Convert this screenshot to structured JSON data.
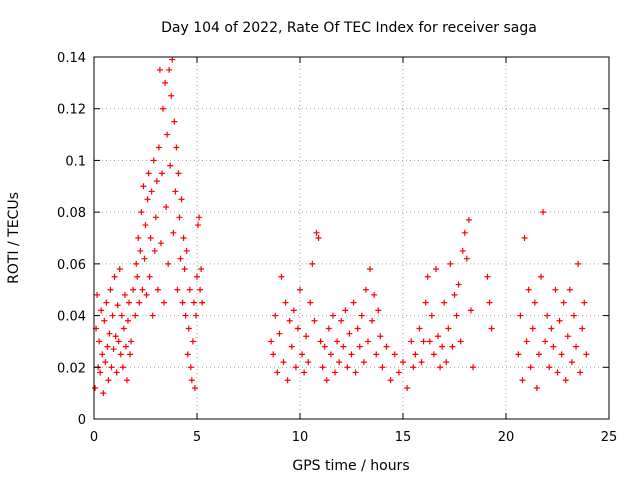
{
  "chart_data": {
    "type": "scatter",
    "title": "Day 104 of 2022, Rate Of TEC Index for receiver saga",
    "xlabel": "GPS time / hours",
    "ylabel": "ROTI / TECUs",
    "xlim": [
      0,
      25
    ],
    "ylim": [
      0,
      0.14
    ],
    "xticks": [
      0,
      5,
      10,
      15,
      20,
      25
    ],
    "yticks": [
      0,
      0.02,
      0.04,
      0.06,
      0.08,
      0.1,
      0.12,
      0.14
    ],
    "xtick_labels": [
      "0",
      "5",
      "10",
      "15",
      "20",
      "25"
    ],
    "ytick_labels": [
      "0",
      "0.02",
      "0.04",
      "0.06",
      "0.08",
      "0.1",
      "0.12",
      "0.14"
    ],
    "grid": true,
    "marker": "plus",
    "color": "#ff0000",
    "series": [
      {
        "points": [
          [
            0.05,
            0.012
          ],
          [
            0.1,
            0.035
          ],
          [
            0.15,
            0.048
          ],
          [
            0.2,
            0.02
          ],
          [
            0.25,
            0.03
          ],
          [
            0.3,
            0.018
          ],
          [
            0.35,
            0.042
          ],
          [
            0.4,
            0.025
          ],
          [
            0.45,
            0.01
          ],
          [
            0.5,
            0.038
          ],
          [
            0.55,
            0.022
          ],
          [
            0.6,
            0.045
          ],
          [
            0.65,
            0.028
          ],
          [
            0.7,
            0.015
          ],
          [
            0.75,
            0.033
          ],
          [
            0.8,
            0.05
          ],
          [
            0.85,
            0.02
          ],
          [
            0.9,
            0.04
          ],
          [
            0.95,
            0.027
          ],
          [
            1.0,
            0.055
          ],
          [
            1.05,
            0.032
          ],
          [
            1.1,
            0.018
          ],
          [
            1.15,
            0.044
          ],
          [
            1.2,
            0.03
          ],
          [
            1.25,
            0.058
          ],
          [
            1.3,
            0.025
          ],
          [
            1.35,
            0.04
          ],
          [
            1.4,
            0.02
          ],
          [
            1.45,
            0.035
          ],
          [
            1.5,
            0.048
          ],
          [
            1.55,
            0.028
          ],
          [
            1.6,
            0.015
          ],
          [
            1.65,
            0.038
          ],
          [
            1.7,
            0.045
          ],
          [
            1.75,
            0.025
          ],
          [
            1.8,
            0.03
          ],
          [
            1.9,
            0.05
          ],
          [
            2.0,
            0.04
          ],
          [
            2.05,
            0.06
          ],
          [
            2.1,
            0.055
          ],
          [
            2.15,
            0.07
          ],
          [
            2.2,
            0.045
          ],
          [
            2.25,
            0.065
          ],
          [
            2.3,
            0.08
          ],
          [
            2.35,
            0.05
          ],
          [
            2.4,
            0.09
          ],
          [
            2.45,
            0.062
          ],
          [
            2.5,
            0.075
          ],
          [
            2.55,
            0.048
          ],
          [
            2.6,
            0.085
          ],
          [
            2.65,
            0.095
          ],
          [
            2.7,
            0.055
          ],
          [
            2.75,
            0.07
          ],
          [
            2.8,
            0.088
          ],
          [
            2.85,
            0.04
          ],
          [
            2.9,
            0.1
          ],
          [
            2.95,
            0.065
          ],
          [
            3.0,
            0.078
          ],
          [
            3.05,
            0.092
          ],
          [
            3.1,
            0.05
          ],
          [
            3.15,
            0.105
          ],
          [
            3.2,
            0.135
          ],
          [
            3.25,
            0.068
          ],
          [
            3.3,
            0.095
          ],
          [
            3.35,
            0.12
          ],
          [
            3.4,
            0.045
          ],
          [
            3.45,
            0.13
          ],
          [
            3.5,
            0.082
          ],
          [
            3.55,
            0.11
          ],
          [
            3.6,
            0.06
          ],
          [
            3.65,
            0.135
          ],
          [
            3.7,
            0.098
          ],
          [
            3.75,
            0.125
          ],
          [
            3.8,
            0.139
          ],
          [
            3.85,
            0.072
          ],
          [
            3.9,
            0.115
          ],
          [
            3.95,
            0.088
          ],
          [
            4.0,
            0.105
          ],
          [
            4.05,
            0.05
          ],
          [
            4.1,
            0.095
          ],
          [
            4.15,
            0.078
          ],
          [
            4.2,
            0.062
          ],
          [
            4.25,
            0.085
          ],
          [
            4.3,
            0.045
          ],
          [
            4.35,
            0.07
          ],
          [
            4.4,
            0.058
          ],
          [
            4.45,
            0.04
          ],
          [
            4.5,
            0.065
          ],
          [
            4.55,
            0.025
          ],
          [
            4.6,
            0.035
          ],
          [
            4.65,
            0.05
          ],
          [
            4.7,
            0.02
          ],
          [
            4.75,
            0.015
          ],
          [
            4.8,
            0.03
          ],
          [
            4.85,
            0.045
          ],
          [
            4.9,
            0.012
          ],
          [
            4.95,
            0.04
          ],
          [
            5.0,
            0.055
          ],
          [
            5.05,
            0.075
          ],
          [
            5.1,
            0.078
          ],
          [
            5.15,
            0.05
          ],
          [
            5.2,
            0.058
          ],
          [
            5.25,
            0.045
          ],
          [
            8.6,
            0.03
          ],
          [
            8.7,
            0.025
          ],
          [
            8.8,
            0.04
          ],
          [
            8.9,
            0.018
          ],
          [
            9.0,
            0.033
          ],
          [
            9.1,
            0.055
          ],
          [
            9.2,
            0.022
          ],
          [
            9.3,
            0.045
          ],
          [
            9.4,
            0.015
          ],
          [
            9.5,
            0.038
          ],
          [
            9.6,
            0.028
          ],
          [
            9.7,
            0.042
          ],
          [
            9.8,
            0.02
          ],
          [
            9.9,
            0.035
          ],
          [
            10.0,
            0.05
          ],
          [
            10.1,
            0.025
          ],
          [
            10.2,
            0.018
          ],
          [
            10.3,
            0.032
          ],
          [
            10.4,
            0.022
          ],
          [
            10.5,
            0.045
          ],
          [
            10.6,
            0.06
          ],
          [
            10.7,
            0.038
          ],
          [
            10.8,
            0.072
          ],
          [
            10.9,
            0.07
          ],
          [
            11.0,
            0.03
          ],
          [
            11.1,
            0.02
          ],
          [
            11.2,
            0.028
          ],
          [
            11.3,
            0.015
          ],
          [
            11.4,
            0.035
          ],
          [
            11.5,
            0.025
          ],
          [
            11.6,
            0.04
          ],
          [
            11.7,
            0.018
          ],
          [
            11.8,
            0.03
          ],
          [
            11.9,
            0.022
          ],
          [
            12.0,
            0.038
          ],
          [
            12.1,
            0.028
          ],
          [
            12.2,
            0.042
          ],
          [
            12.3,
            0.02
          ],
          [
            12.4,
            0.033
          ],
          [
            12.5,
            0.025
          ],
          [
            12.6,
            0.045
          ],
          [
            12.7,
            0.018
          ],
          [
            12.8,
            0.035
          ],
          [
            12.9,
            0.028
          ],
          [
            13.0,
            0.04
          ],
          [
            13.1,
            0.022
          ],
          [
            13.2,
            0.05
          ],
          [
            13.3,
            0.03
          ],
          [
            13.4,
            0.058
          ],
          [
            13.5,
            0.038
          ],
          [
            13.6,
            0.048
          ],
          [
            13.7,
            0.025
          ],
          [
            13.8,
            0.042
          ],
          [
            13.9,
            0.032
          ],
          [
            14.0,
            0.02
          ],
          [
            14.2,
            0.028
          ],
          [
            14.4,
            0.015
          ],
          [
            14.6,
            0.025
          ],
          [
            14.8,
            0.018
          ],
          [
            15.0,
            0.022
          ],
          [
            15.2,
            0.012
          ],
          [
            15.4,
            0.03
          ],
          [
            15.5,
            0.02
          ],
          [
            15.6,
            0.025
          ],
          [
            15.8,
            0.035
          ],
          [
            15.9,
            0.022
          ],
          [
            16.0,
            0.03
          ],
          [
            16.1,
            0.045
          ],
          [
            16.2,
            0.055
          ],
          [
            16.3,
            0.03
          ],
          [
            16.4,
            0.04
          ],
          [
            16.5,
            0.025
          ],
          [
            16.6,
            0.058
          ],
          [
            16.7,
            0.032
          ],
          [
            16.8,
            0.02
          ],
          [
            16.9,
            0.028
          ],
          [
            17.0,
            0.045
          ],
          [
            17.1,
            0.022
          ],
          [
            17.2,
            0.035
          ],
          [
            17.3,
            0.06
          ],
          [
            17.4,
            0.028
          ],
          [
            17.5,
            0.048
          ],
          [
            17.6,
            0.04
          ],
          [
            17.7,
            0.052
          ],
          [
            17.8,
            0.03
          ],
          [
            17.9,
            0.065
          ],
          [
            18.0,
            0.072
          ],
          [
            18.1,
            0.062
          ],
          [
            18.2,
            0.077
          ],
          [
            18.3,
            0.042
          ],
          [
            18.4,
            0.02
          ],
          [
            19.1,
            0.055
          ],
          [
            19.2,
            0.045
          ],
          [
            19.3,
            0.035
          ],
          [
            20.6,
            0.025
          ],
          [
            20.7,
            0.04
          ],
          [
            20.8,
            0.015
          ],
          [
            20.9,
            0.07
          ],
          [
            21.0,
            0.03
          ],
          [
            21.1,
            0.05
          ],
          [
            21.2,
            0.02
          ],
          [
            21.3,
            0.035
          ],
          [
            21.4,
            0.045
          ],
          [
            21.5,
            0.012
          ],
          [
            21.6,
            0.025
          ],
          [
            21.7,
            0.055
          ],
          [
            21.8,
            0.08
          ],
          [
            21.9,
            0.03
          ],
          [
            22.0,
            0.04
          ],
          [
            22.1,
            0.02
          ],
          [
            22.2,
            0.035
          ],
          [
            22.3,
            0.028
          ],
          [
            22.4,
            0.05
          ],
          [
            22.5,
            0.018
          ],
          [
            22.6,
            0.038
          ],
          [
            22.7,
            0.025
          ],
          [
            22.8,
            0.045
          ],
          [
            22.9,
            0.015
          ],
          [
            23.0,
            0.032
          ],
          [
            23.1,
            0.05
          ],
          [
            23.2,
            0.022
          ],
          [
            23.3,
            0.04
          ],
          [
            23.4,
            0.028
          ],
          [
            23.5,
            0.06
          ],
          [
            23.6,
            0.018
          ],
          [
            23.7,
            0.035
          ],
          [
            23.8,
            0.045
          ],
          [
            23.9,
            0.025
          ]
        ]
      }
    ]
  }
}
